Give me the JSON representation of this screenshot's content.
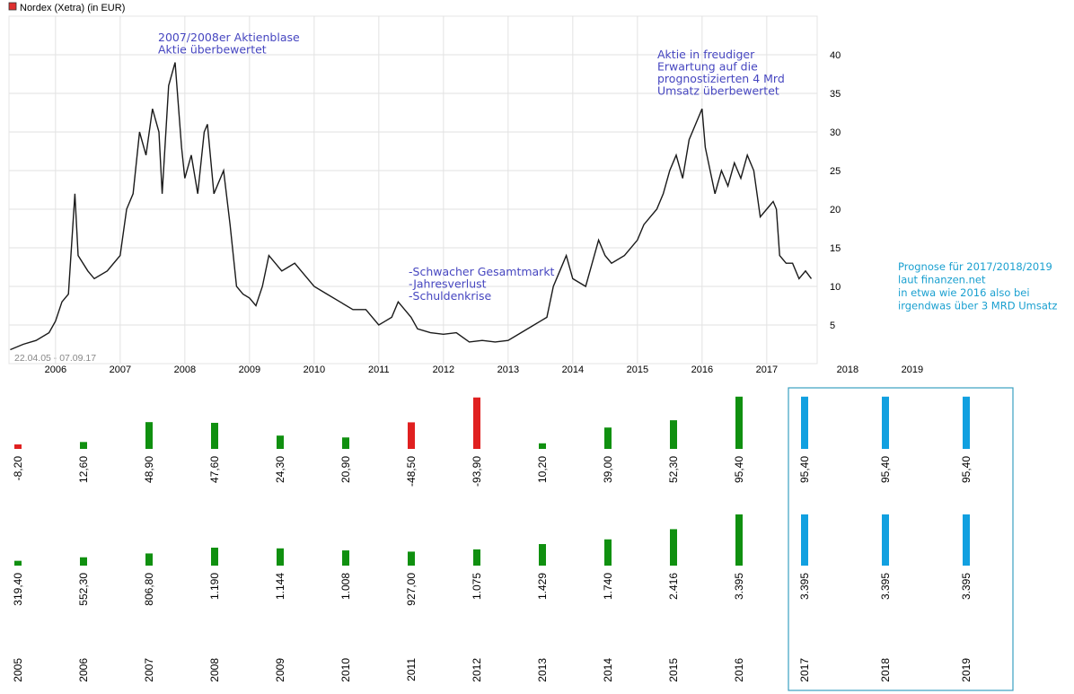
{
  "chart_data": [
    {
      "type": "line",
      "title": "Nordex (Xetra) (in EUR)",
      "date_range": "22.04.05 - 07.09.17",
      "color": "#1a1a1a",
      "x": [
        2005.3,
        2005.5,
        2005.7,
        2005.9,
        2006.0,
        2006.1,
        2006.2,
        2006.3,
        2006.35,
        2006.5,
        2006.6,
        2006.8,
        2007.0,
        2007.1,
        2007.2,
        2007.3,
        2007.4,
        2007.5,
        2007.6,
        2007.65,
        2007.75,
        2007.85,
        2007.95,
        2008.0,
        2008.1,
        2008.2,
        2008.3,
        2008.35,
        2008.45,
        2008.6,
        2008.7,
        2008.8,
        2008.9,
        2009.0,
        2009.1,
        2009.2,
        2009.3,
        2009.4,
        2009.5,
        2009.6,
        2009.7,
        2009.8,
        2010.0,
        2010.2,
        2010.4,
        2010.6,
        2010.8,
        2011.0,
        2011.1,
        2011.2,
        2011.3,
        2011.4,
        2011.5,
        2011.6,
        2011.8,
        2012.0,
        2012.2,
        2012.4,
        2012.6,
        2012.8,
        2013.0,
        2013.2,
        2013.4,
        2013.5,
        2013.6,
        2013.7,
        2013.8,
        2013.9,
        2014.0,
        2014.2,
        2014.3,
        2014.4,
        2014.5,
        2014.6,
        2014.8,
        2015.0,
        2015.1,
        2015.2,
        2015.3,
        2015.4,
        2015.5,
        2015.6,
        2015.7,
        2015.8,
        2015.9,
        2016.0,
        2016.05,
        2016.1,
        2016.2,
        2016.3,
        2016.4,
        2016.5,
        2016.6,
        2016.7,
        2016.8,
        2016.9,
        2017.0,
        2017.1,
        2017.15,
        2017.2,
        2017.3,
        2017.4,
        2017.5,
        2017.6,
        2017.69
      ],
      "values": [
        1.8,
        2.5,
        3,
        4,
        5.5,
        8,
        9,
        22,
        14,
        12,
        11,
        12,
        14,
        20,
        22,
        30,
        27,
        33,
        30,
        22,
        36,
        39,
        28,
        24,
        27,
        22,
        30,
        31,
        22,
        25,
        18,
        10,
        9,
        8.5,
        7.5,
        10,
        14,
        13,
        12,
        12.5,
        13,
        12,
        10,
        9,
        8,
        7,
        7,
        5,
        5.5,
        6,
        8,
        7,
        6,
        4.5,
        4,
        3.8,
        4,
        2.8,
        3,
        2.8,
        3,
        4,
        5,
        5.5,
        6,
        10,
        12,
        14,
        11,
        10,
        13,
        16,
        14,
        13,
        14,
        16,
        18,
        19,
        20,
        22,
        25,
        27,
        24,
        29,
        31,
        33,
        28,
        26,
        22,
        25,
        23,
        26,
        24,
        27,
        25,
        19,
        20,
        21,
        20,
        14,
        13,
        13,
        11,
        12,
        11
      ],
      "xlim": [
        2005.28,
        2017.78
      ],
      "ylim": [
        0,
        45
      ],
      "yticks": [
        5,
        10,
        15,
        20,
        25,
        30,
        35,
        40
      ],
      "xticks": [
        2006,
        2007,
        2008,
        2009,
        2010,
        2011,
        2012,
        2013,
        2014,
        2015,
        2016,
        2017,
        2018,
        2019
      ],
      "grid": true,
      "annotations": [
        [
          "2007/2008er Aktienblase",
          "Aktie überbewertet"
        ],
        [
          "-Schwacher Gesamtmarkt",
          "-Jahresverlust",
          "-Schuldenkrise"
        ],
        [
          "Aktie in freudiger",
          "Erwartung auf die",
          "prognostizierten 4 Mrd",
          "Umsatz überbewertet"
        ]
      ],
      "note": [
        "Prognose für 2017/2018/2019",
        "laut finanzen.net",
        "in etwa wie 2016 also bei",
        "irgendwas über 3 MRD Umsatz"
      ]
    },
    {
      "type": "bar",
      "categories": [
        "2005",
        "2006",
        "2007",
        "2008",
        "2009",
        "2010",
        "2011",
        "2012",
        "2013",
        "2014",
        "2015",
        "2016",
        "2017",
        "2018",
        "2019"
      ],
      "series": [
        {
          "values": [
            -8.2,
            12.6,
            48.9,
            47.6,
            24.3,
            20.9,
            -48.5,
            -93.9,
            10.2,
            39,
            52.3,
            95.4,
            95.4,
            95.4,
            95.4
          ],
          "value_labels": [
            "-8,20",
            "12,60",
            "48,90",
            "47,60",
            "24,30",
            "20,90",
            "-48,50",
            "-93,90",
            "10,20",
            "39,00",
            "52,30",
            "95,40",
            "95,40",
            "95,40",
            "95,40"
          ],
          "colors": [
            "#e02020",
            "#109010",
            "#109010",
            "#109010",
            "#109010",
            "#109010",
            "#e02020",
            "#e02020",
            "#109010",
            "#109010",
            "#109010",
            "#109010",
            "#11a0e0",
            "#11a0e0",
            "#11a0e0"
          ]
        },
        {
          "values": [
            319.4,
            552.3,
            806.8,
            1190,
            1144,
            1008,
            927,
            1075,
            1429,
            1740,
            2416,
            3395,
            3395,
            3395,
            3395
          ],
          "value_labels": [
            "319,40",
            "552,30",
            "806,80",
            "1.190",
            "1.144",
            "1.008",
            "927,00",
            "1.075",
            "1.429",
            "1.740",
            "2.416",
            "3.395",
            "3.395",
            "3.395",
            "3.395"
          ],
          "colors": [
            "#109010",
            "#109010",
            "#109010",
            "#109010",
            "#109010",
            "#109010",
            "#109010",
            "#109010",
            "#109010",
            "#109010",
            "#109010",
            "#109010",
            "#11a0e0",
            "#11a0e0",
            "#11a0e0"
          ]
        }
      ]
    }
  ]
}
